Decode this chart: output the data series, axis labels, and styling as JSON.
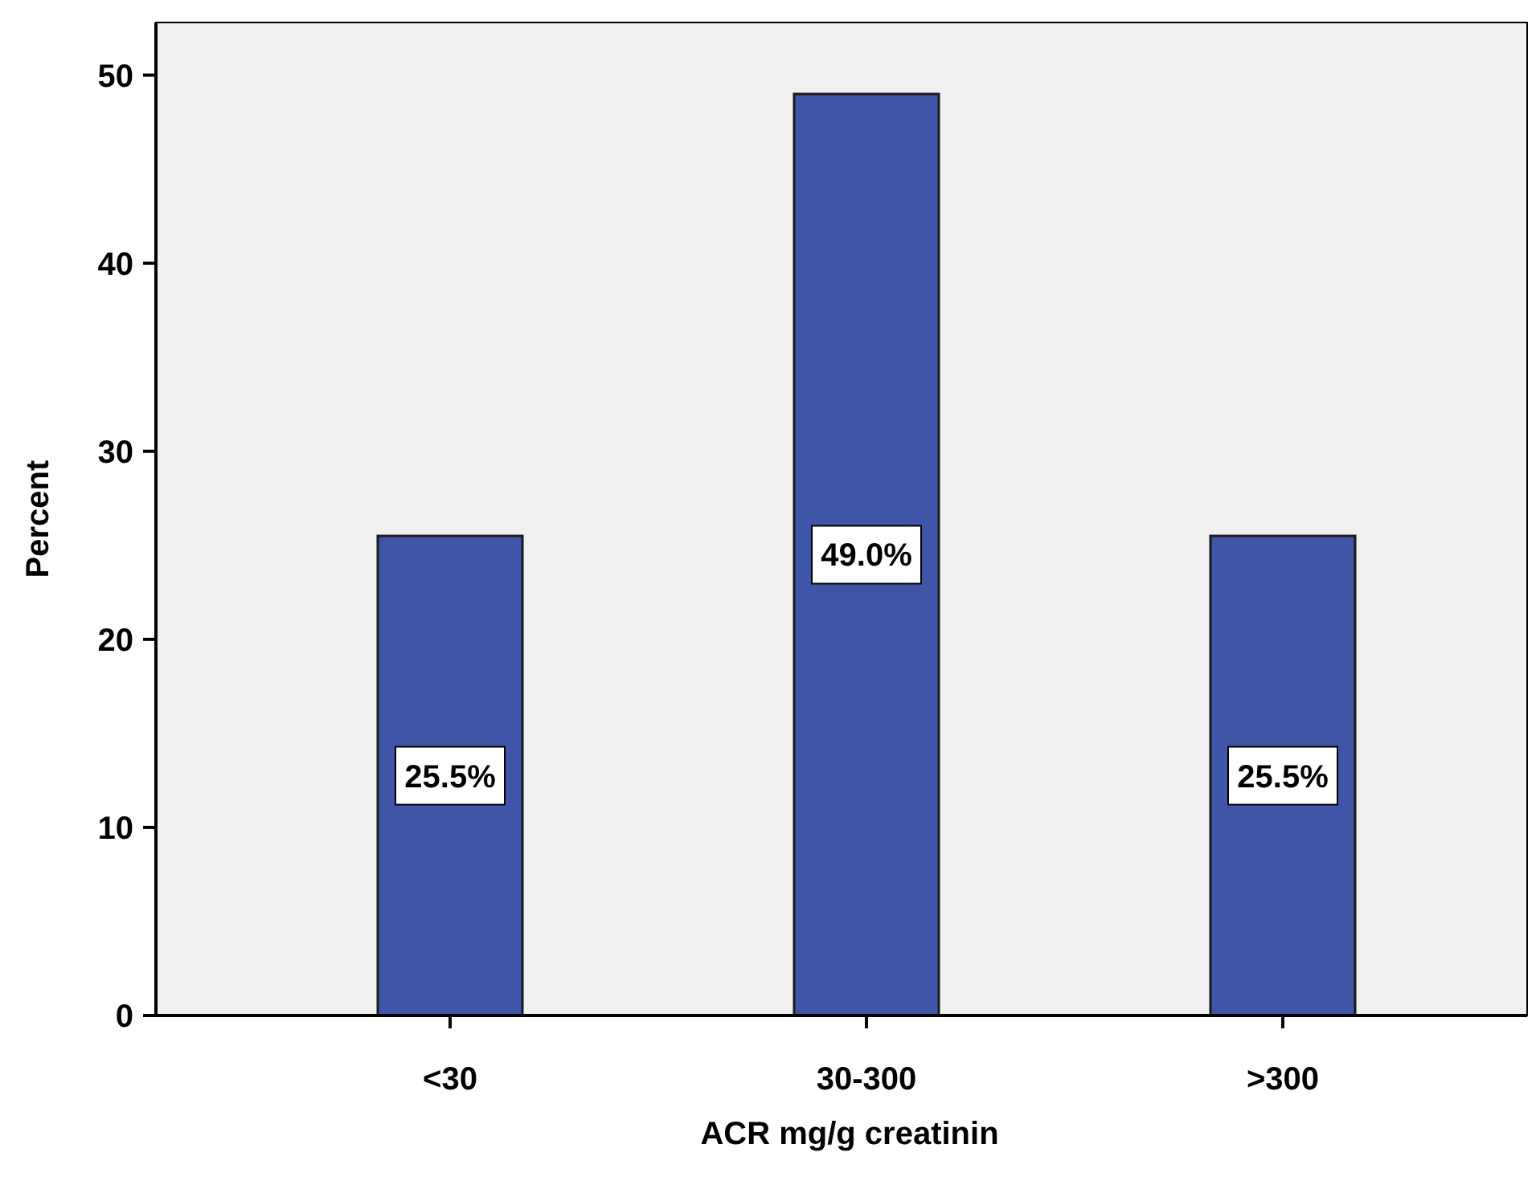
{
  "chart_data": {
    "type": "bar",
    "xlabel": "ACR mg/g creatinin",
    "ylabel": "Percent",
    "categories": [
      "<30",
      "30-300",
      ">300"
    ],
    "values": [
      25.5,
      49.0,
      25.5
    ],
    "value_labels": [
      "25.5%",
      "49.0%",
      "25.5%"
    ],
    "color": "#3f55a8",
    "ylim": [
      0,
      52.8
    ],
    "yticks": [
      0,
      10,
      20,
      30,
      40,
      50
    ],
    "grid": false
  }
}
